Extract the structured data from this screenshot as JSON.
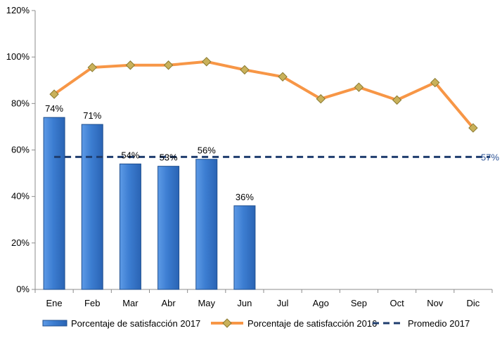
{
  "chart_data": {
    "type": "bar",
    "categories": [
      "Ene",
      "Feb",
      "Mar",
      "Abr",
      "May",
      "Jun",
      "Jul",
      "Ago",
      "Sep",
      "Oct",
      "Nov",
      "Dic"
    ],
    "ylim": [
      0,
      120
    ],
    "yticks": [
      "0%",
      "20%",
      "40%",
      "60%",
      "80%",
      "100%",
      "120%"
    ],
    "grid": false,
    "legend_position": "bottom",
    "series": [
      {
        "name": "Porcentaje de satisfacción 2017",
        "type": "bar",
        "color": "#3c7dd1",
        "values": [
          74,
          71,
          54,
          53,
          56,
          36,
          null,
          null,
          null,
          null,
          null,
          null
        ],
        "labels": [
          "74%",
          "71%",
          "54%",
          "53%",
          "56%",
          "36%"
        ]
      },
      {
        "name": "Porcentaje de satisfacción 2016",
        "type": "line",
        "color": "#f79646",
        "marker": "diamond",
        "marker_color": "#c9b15a",
        "values": [
          84,
          95.5,
          96.5,
          96.5,
          98,
          94.5,
          91.5,
          82,
          87,
          81.5,
          89,
          69.5
        ]
      },
      {
        "name": "Promedio 2017",
        "type": "line",
        "style": "dashed",
        "color": "#1f3d6e",
        "values": [
          57,
          57,
          57,
          57,
          57,
          57,
          57,
          57,
          57,
          57,
          57,
          57
        ],
        "label": "57%"
      }
    ]
  }
}
